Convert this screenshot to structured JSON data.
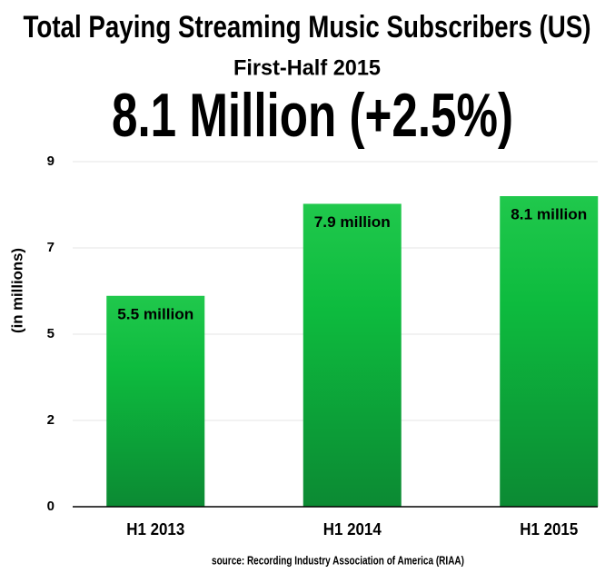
{
  "chart_data": {
    "type": "bar",
    "title": "Total Paying Streaming Music Subscribers (US)",
    "subtitle": "First-Half 2015",
    "headline": "8.1 Million (+2.5%)",
    "ylabel": "(in millions)",
    "source": "source: Recording Industry Association of America (RIAA)",
    "categories": [
      "H1 2013",
      "H1 2014",
      "H1 2015"
    ],
    "values": [
      5.5,
      7.9,
      8.1
    ],
    "value_labels": [
      "5.5 million",
      "7.9 million",
      "8.1 million"
    ],
    "color": "#12b843",
    "ylim": [
      0,
      9
    ],
    "yticks": [
      0,
      {
        "value": 2.25,
        "label": "2"
      },
      {
        "value": 4.5,
        "label": "5"
      },
      {
        "value": 6.75,
        "label": "7"
      },
      9
    ],
    "grid": true
  }
}
